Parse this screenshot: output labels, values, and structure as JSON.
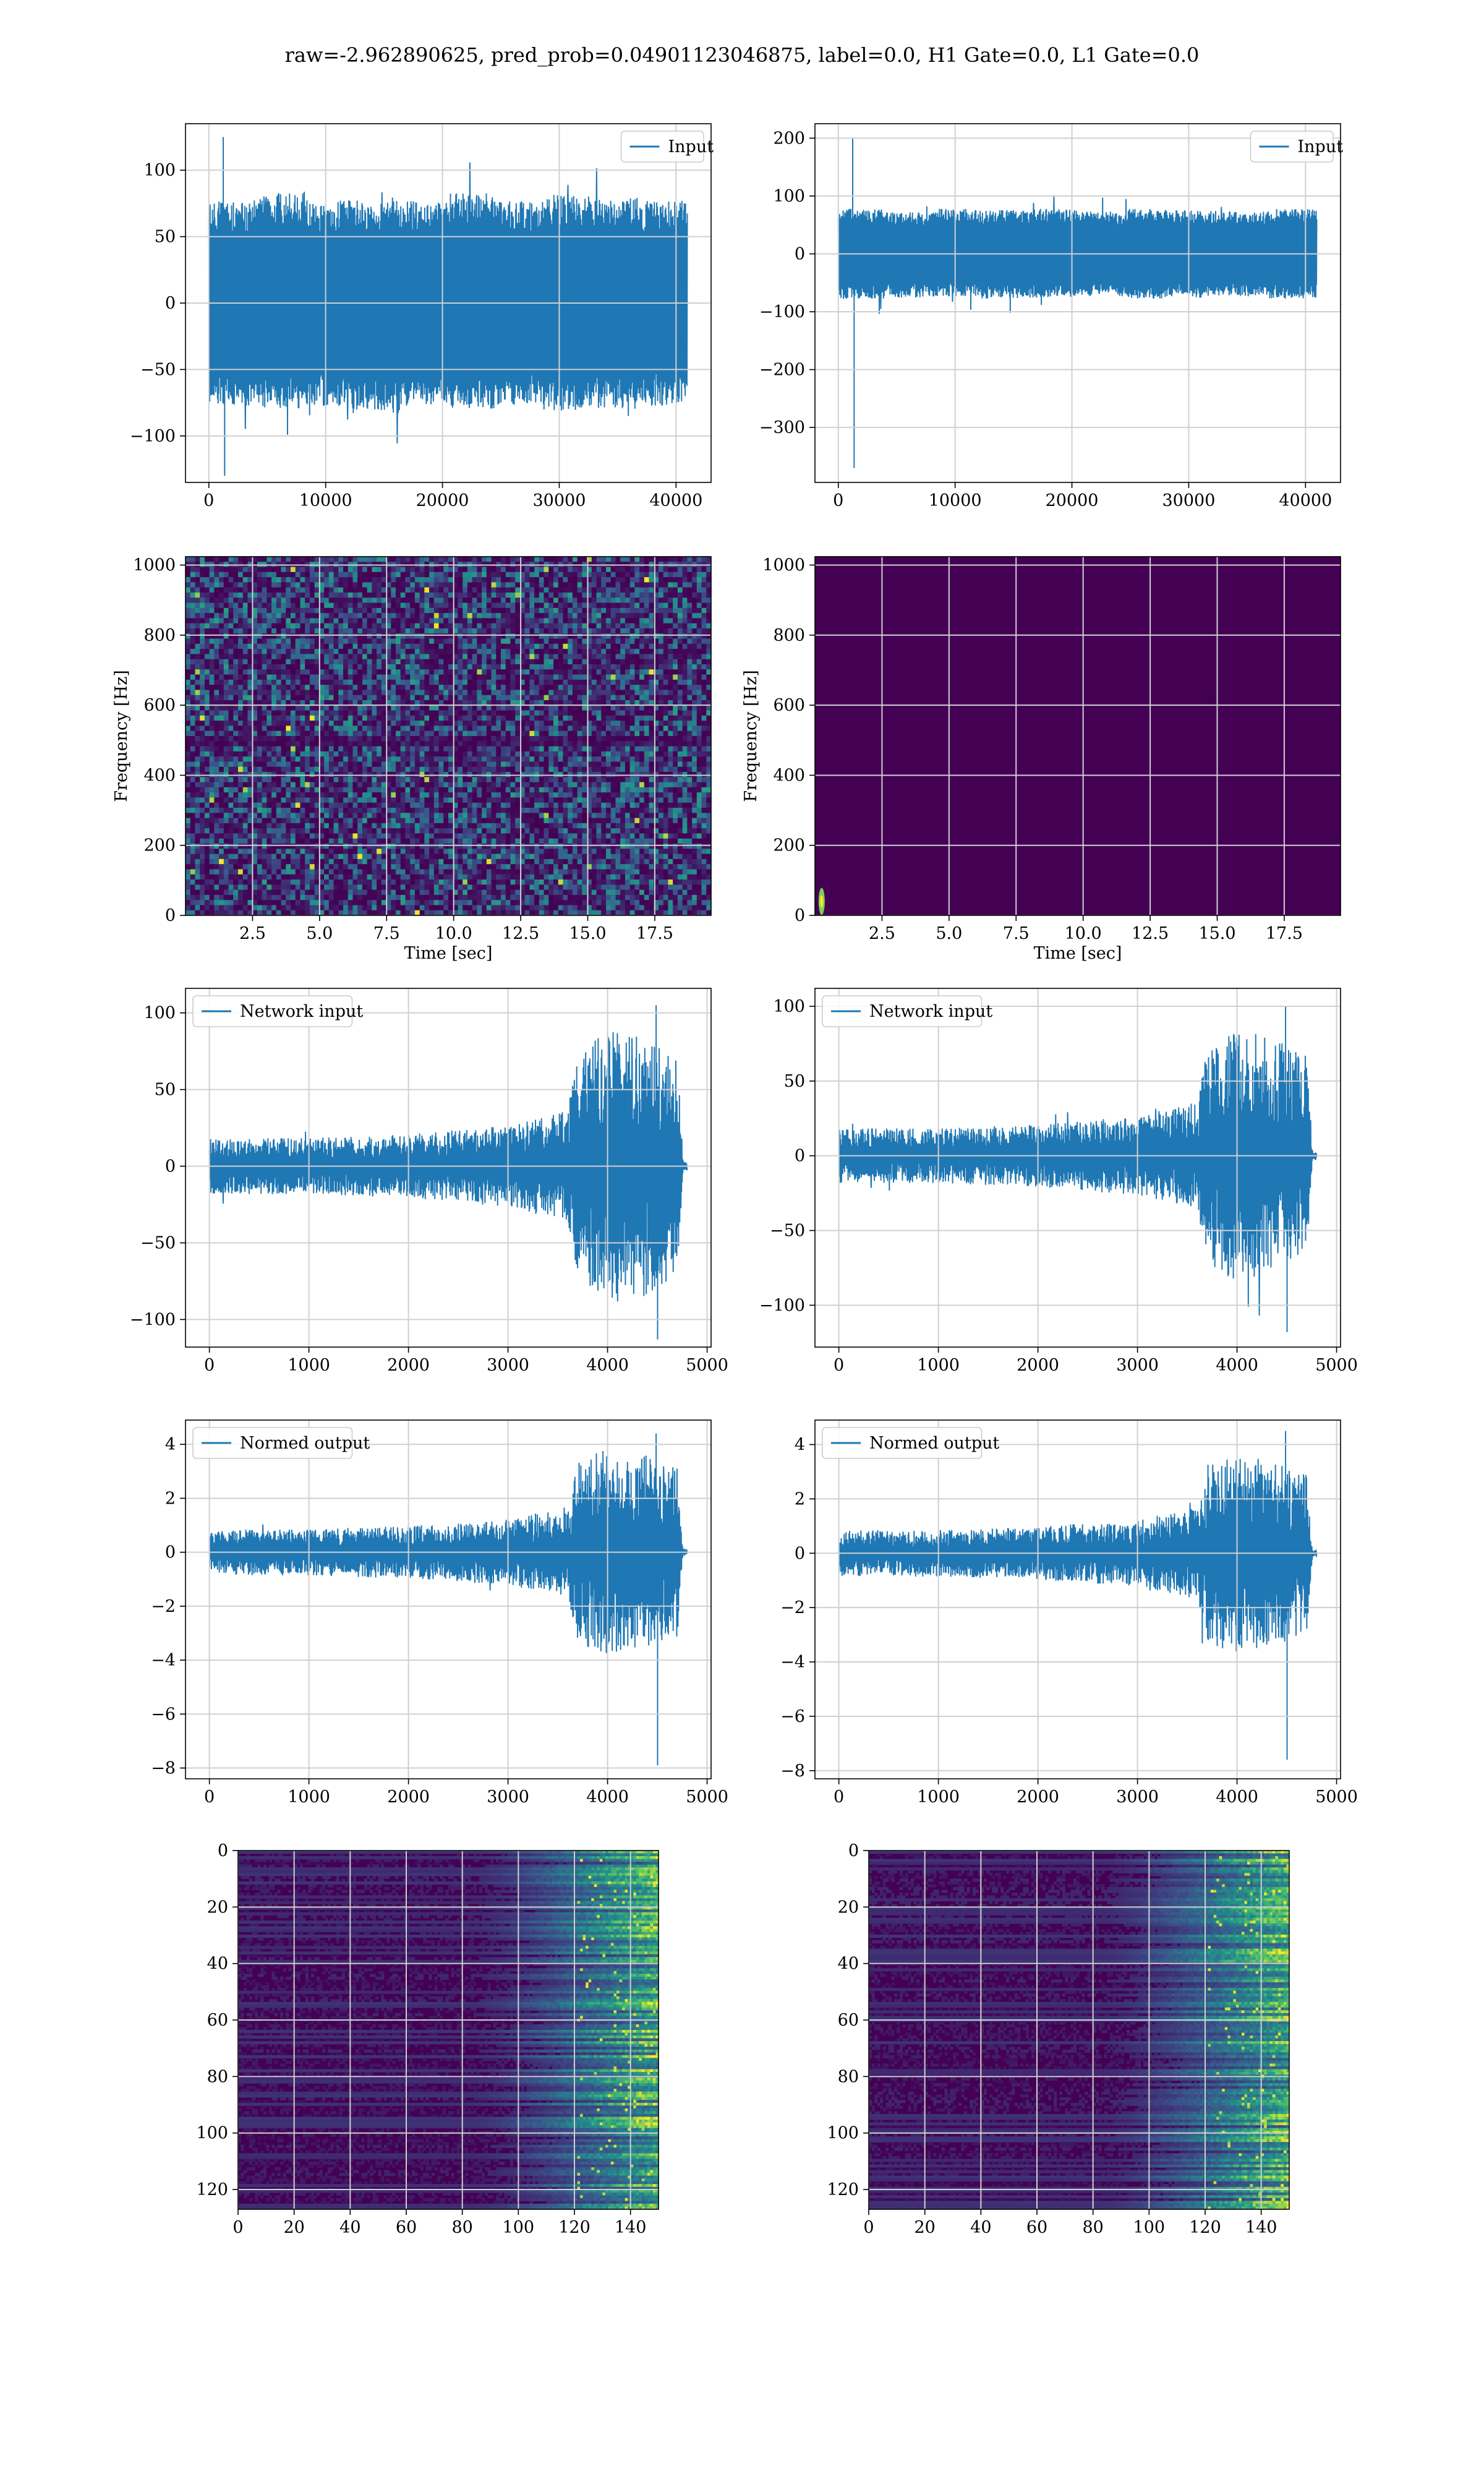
{
  "suptitle": "raw=-2.962890625, pred_prob=0.04901123046875, label=0.0, H1 Gate=0.0, L1 Gate=0.0",
  "colors": {
    "line": "#1f77b4",
    "grid": "#d0d0d0",
    "viridis_low": "#440154",
    "viridis_mid": "#3b528b",
    "viridis_high": "#5ec962",
    "viridis_top": "#fde725"
  },
  "chart_data": [
    {
      "id": "h1-input",
      "type": "line",
      "legend": "Input",
      "legend_loc": "upper right",
      "grid": true,
      "xlim": [
        -2000,
        43000
      ],
      "ylim": [
        -135,
        135
      ],
      "xticks": [
        0,
        10000,
        20000,
        30000,
        40000
      ],
      "yticks": [
        -100,
        -50,
        0,
        50,
        100
      ],
      "xtick_labels": [
        "0",
        "10000",
        "20000",
        "30000",
        "40000"
      ],
      "ytick_labels": [
        "−100",
        "−50",
        "0",
        "50",
        "100"
      ],
      "series": [
        {
          "name": "Input",
          "x_range": [
            0,
            40960
          ],
          "envelope_center": 0,
          "envelope_upper": [
            70,
            75,
            70,
            72,
            70,
            75,
            70,
            74,
            72,
            70
          ],
          "envelope_lower": [
            -70,
            -72,
            -70,
            -75,
            -70,
            -72,
            -70,
            -74,
            -72,
            -70
          ],
          "spikes_max": 125,
          "spikes_min": -130
        }
      ]
    },
    {
      "id": "l1-input",
      "type": "line",
      "legend": "Input",
      "legend_loc": "upper right",
      "grid": true,
      "xlim": [
        -2000,
        43000
      ],
      "ylim": [
        -395,
        225
      ],
      "xticks": [
        0,
        10000,
        20000,
        30000,
        40000
      ],
      "yticks": [
        -300,
        -200,
        -100,
        0,
        100,
        200
      ],
      "xtick_labels": [
        "0",
        "10000",
        "20000",
        "30000",
        "40000"
      ],
      "ytick_labels": [
        "−300",
        "−200",
        "−100",
        "0",
        "100",
        "200"
      ],
      "series": [
        {
          "name": "Input",
          "x_range": [
            0,
            40960
          ],
          "envelope_center": 0,
          "envelope_upper": [
            70,
            65,
            70,
            68,
            70,
            66,
            70,
            68,
            66,
            70
          ],
          "envelope_lower": [
            -70,
            -68,
            -66,
            -70,
            -68,
            -66,
            -70,
            -68,
            -66,
            -70
          ],
          "spikes_max": 200,
          "spikes_min": -370
        }
      ]
    },
    {
      "id": "h1-spectrogram",
      "type": "heatmap",
      "xlabel": "Time [sec]",
      "ylabel": "Frequency [Hz]",
      "grid": true,
      "xlim": [
        0,
        19.6
      ],
      "ylim": [
        0,
        1024
      ],
      "xticks": [
        2.5,
        5.0,
        7.5,
        10.0,
        12.5,
        15.0,
        17.5
      ],
      "yticks": [
        0,
        200,
        400,
        600,
        800,
        1000
      ],
      "xtick_labels": [
        "2.5",
        "5.0",
        "7.5",
        "10.0",
        "12.5",
        "15.0",
        "17.5"
      ],
      "ytick_labels": [
        "0",
        "200",
        "400",
        "600",
        "800",
        "1000"
      ],
      "colormap": "viridis",
      "pattern": "broadband noise with faint horizontal line near 500 Hz and scattered bright speckles"
    },
    {
      "id": "l1-spectrogram",
      "type": "heatmap",
      "xlabel": "Time [sec]",
      "ylabel": "Frequency [Hz]",
      "grid": true,
      "xlim": [
        0,
        19.6
      ],
      "ylim": [
        0,
        1024
      ],
      "xticks": [
        2.5,
        5.0,
        7.5,
        10.0,
        12.5,
        15.0,
        17.5
      ],
      "yticks": [
        0,
        200,
        400,
        600,
        800,
        1000
      ],
      "xtick_labels": [
        "2.5",
        "5.0",
        "7.5",
        "10.0",
        "12.5",
        "15.0",
        "17.5"
      ],
      "ytick_labels": [
        "0",
        "200",
        "400",
        "600",
        "800",
        "1000"
      ],
      "colormap": "viridis",
      "pattern": "nearly uniform dark field with a single bright blob near t=0.2 s, f<100 Hz"
    },
    {
      "id": "h1-network-input",
      "type": "line",
      "legend": "Network input",
      "legend_loc": "upper left",
      "grid": true,
      "xlim": [
        -240,
        5040
      ],
      "ylim": [
        -118,
        116
      ],
      "xticks": [
        0,
        1000,
        2000,
        3000,
        4000,
        5000
      ],
      "yticks": [
        -100,
        -50,
        0,
        50,
        100
      ],
      "xtick_labels": [
        "0",
        "1000",
        "2000",
        "3000",
        "4000",
        "5000"
      ],
      "ytick_labels": [
        "−100",
        "−50",
        "0",
        "50",
        "100"
      ],
      "series": [
        {
          "name": "Network input",
          "x_range": [
            0,
            4800
          ],
          "envelope": [
            [
              0,
              15
            ],
            [
              1000,
              15
            ],
            [
              2000,
              17
            ],
            [
              3000,
              22
            ],
            [
              3600,
              30
            ],
            [
              3700,
              60
            ],
            [
              4000,
              75
            ],
            [
              4400,
              70
            ],
            [
              4700,
              60
            ],
            [
              4760,
              2
            ],
            [
              4800,
              2
            ]
          ],
          "spikes_max": 105,
          "spikes_min": -113
        }
      ]
    },
    {
      "id": "l1-network-input",
      "type": "line",
      "legend": "Network input",
      "legend_loc": "upper left",
      "grid": true,
      "xlim": [
        -240,
        5040
      ],
      "ylim": [
        -128,
        112
      ],
      "xticks": [
        0,
        1000,
        2000,
        3000,
        4000,
        5000
      ],
      "yticks": [
        -100,
        -50,
        0,
        50,
        100
      ],
      "xtick_labels": [
        "0",
        "1000",
        "2000",
        "3000",
        "4000",
        "5000"
      ],
      "ytick_labels": [
        "−100",
        "−50",
        "0",
        "50",
        "100"
      ],
      "series": [
        {
          "name": "Network input",
          "x_range": [
            0,
            4800
          ],
          "envelope": [
            [
              0,
              15
            ],
            [
              1000,
              15
            ],
            [
              2000,
              17
            ],
            [
              3000,
              22
            ],
            [
              3600,
              30
            ],
            [
              3700,
              60
            ],
            [
              4000,
              70
            ],
            [
              4400,
              65
            ],
            [
              4700,
              55
            ],
            [
              4760,
              2
            ],
            [
              4800,
              2
            ]
          ],
          "spikes_max": 100,
          "spikes_min": -118
        }
      ]
    },
    {
      "id": "h1-normed-output",
      "type": "line",
      "legend": "Normed output",
      "legend_loc": "upper left",
      "grid": true,
      "xlim": [
        -240,
        5040
      ],
      "ylim": [
        -8.4,
        4.9
      ],
      "xticks": [
        0,
        1000,
        2000,
        3000,
        4000,
        5000
      ],
      "yticks": [
        -8,
        -6,
        -4,
        -2,
        0,
        2,
        4
      ],
      "xtick_labels": [
        "0",
        "1000",
        "2000",
        "3000",
        "4000",
        "5000"
      ],
      "ytick_labels": [
        "−8",
        "−6",
        "−4",
        "−2",
        "0",
        "2",
        "4"
      ],
      "series": [
        {
          "name": "Normed output",
          "x_range": [
            0,
            4800
          ],
          "envelope": [
            [
              0,
              0.7
            ],
            [
              1000,
              0.7
            ],
            [
              2000,
              0.8
            ],
            [
              3000,
              1.0
            ],
            [
              3600,
              1.4
            ],
            [
              3700,
              2.8
            ],
            [
              4000,
              3.2
            ],
            [
              4400,
              3.0
            ],
            [
              4700,
              2.6
            ],
            [
              4760,
              0.1
            ],
            [
              4800,
              0.1
            ]
          ],
          "spikes_max": 4.4,
          "spikes_min": -7.9
        }
      ]
    },
    {
      "id": "l1-normed-output",
      "type": "line",
      "legend": "Normed output",
      "legend_loc": "upper left",
      "grid": true,
      "xlim": [
        -240,
        5040
      ],
      "ylim": [
        -8.3,
        4.9
      ],
      "xticks": [
        0,
        1000,
        2000,
        3000,
        4000,
        5000
      ],
      "yticks": [
        -8,
        -6,
        -4,
        -2,
        0,
        2,
        4
      ],
      "xtick_labels": [
        "0",
        "1000",
        "2000",
        "3000",
        "4000",
        "5000"
      ],
      "ytick_labels": [
        "−8",
        "−6",
        "−4",
        "−2",
        "0",
        "2",
        "4"
      ],
      "series": [
        {
          "name": "Normed output",
          "x_range": [
            0,
            4800
          ],
          "envelope": [
            [
              0,
              0.7
            ],
            [
              1000,
              0.7
            ],
            [
              2000,
              0.8
            ],
            [
              3000,
              1.0
            ],
            [
              3600,
              1.4
            ],
            [
              3700,
              2.8
            ],
            [
              4000,
              3.0
            ],
            [
              4400,
              2.8
            ],
            [
              4700,
              2.4
            ],
            [
              4760,
              0.1
            ],
            [
              4800,
              0.1
            ]
          ],
          "spikes_max": 4.5,
          "spikes_min": -7.6
        }
      ]
    },
    {
      "id": "h1-feature-map",
      "type": "heatmap",
      "grid": true,
      "xlim": [
        0,
        150
      ],
      "ylim": [
        127,
        0
      ],
      "xticks": [
        0,
        20,
        40,
        60,
        80,
        100,
        120,
        140
      ],
      "yticks": [
        0,
        20,
        40,
        60,
        80,
        100,
        120
      ],
      "xtick_labels": [
        "0",
        "20",
        "40",
        "60",
        "80",
        "100",
        "120",
        "140"
      ],
      "ytick_labels": [
        "0",
        "20",
        "40",
        "60",
        "80",
        "100",
        "120"
      ],
      "colormap": "viridis",
      "pattern": "dark horizontal bands for x<80, activity rising toward bright green/yellow for x>100"
    },
    {
      "id": "l1-feature-map",
      "type": "heatmap",
      "grid": true,
      "xlim": [
        0,
        150
      ],
      "ylim": [
        127,
        0
      ],
      "xticks": [
        0,
        20,
        40,
        60,
        80,
        100,
        120,
        140
      ],
      "yticks": [
        0,
        20,
        40,
        60,
        80,
        100,
        120
      ],
      "xtick_labels": [
        "0",
        "20",
        "40",
        "60",
        "80",
        "100",
        "120",
        "140"
      ],
      "ytick_labels": [
        "0",
        "20",
        "40",
        "60",
        "80",
        "100",
        "120"
      ],
      "colormap": "viridis",
      "pattern": "dark horizontal bands for x<80, activity rising toward bright green/yellow for x>100"
    }
  ]
}
